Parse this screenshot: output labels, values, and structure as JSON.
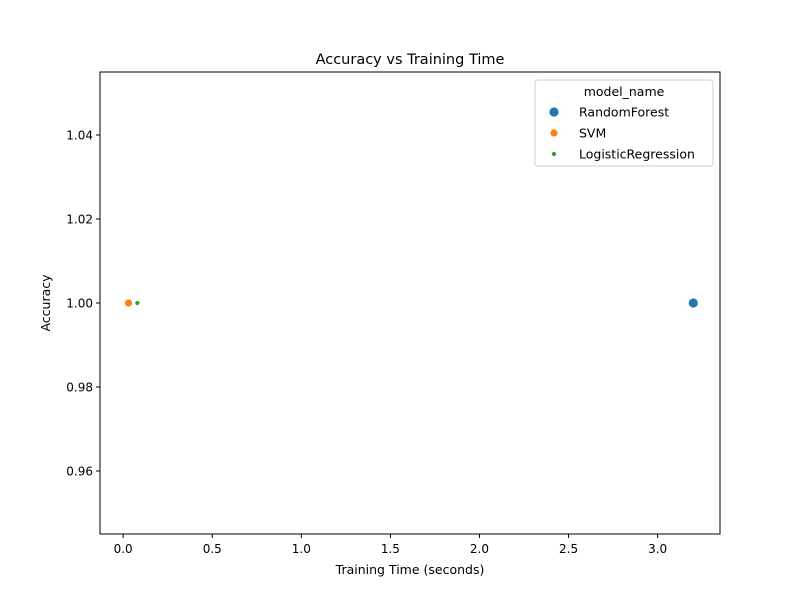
{
  "chart_data": {
    "type": "scatter",
    "title": "Accuracy vs Training Time",
    "xlabel": "Training Time (seconds)",
    "ylabel": "Accuracy",
    "xlim": [
      -0.13,
      3.35
    ],
    "ylim": [
      0.945,
      1.055
    ],
    "x_ticks": [
      0.0,
      0.5,
      1.0,
      1.5,
      2.0,
      2.5,
      3.0
    ],
    "x_tick_labels": [
      "0.0",
      "0.5",
      "1.0",
      "1.5",
      "2.0",
      "2.5",
      "3.0"
    ],
    "y_ticks": [
      0.96,
      0.98,
      1.0,
      1.02,
      1.04
    ],
    "y_tick_labels": [
      "0.96",
      "0.98",
      "1.00",
      "1.02",
      "1.04"
    ],
    "grid": false,
    "legend": {
      "title": "model_name",
      "placement": "top-right"
    },
    "series": [
      {
        "name": "RandomForest",
        "color": "#1f77b4",
        "marker": "large",
        "points": [
          {
            "x": 3.2,
            "y": 1.0
          }
        ]
      },
      {
        "name": "SVM",
        "color": "#ff7f0e",
        "marker": "medium",
        "points": [
          {
            "x": 0.03,
            "y": 1.0
          }
        ]
      },
      {
        "name": "LogisticRegression",
        "color": "#2ca02c",
        "marker": "small",
        "points": [
          {
            "x": 0.08,
            "y": 1.0
          }
        ]
      }
    ]
  }
}
